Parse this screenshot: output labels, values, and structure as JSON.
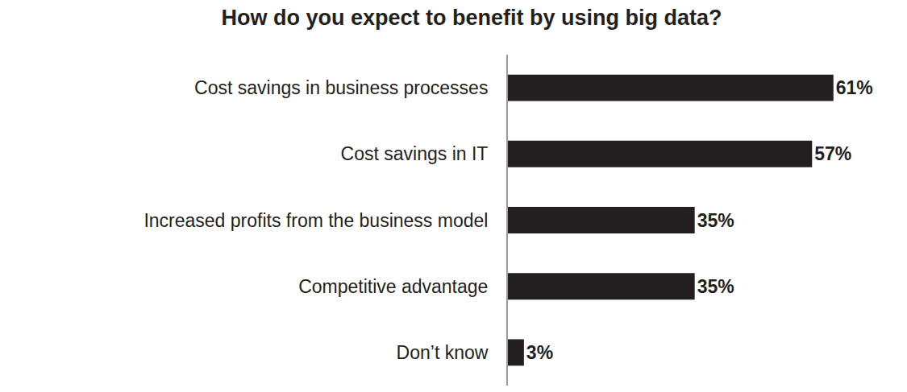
{
  "chart_data": {
    "type": "bar",
    "title": "How do you expect to benefit by using big data?",
    "categories": [
      "Cost savings in business processes",
      "Cost savings in IT",
      "Increased profits from the business model",
      "Competitive advantage",
      "Don’t know"
    ],
    "values": [
      61,
      57,
      35,
      35,
      3
    ],
    "value_labels": [
      "61%",
      "57%",
      "35%",
      "35%",
      "3%"
    ],
    "color": "#231f20",
    "orientation": "horizontal",
    "data_labels": true,
    "tick_labels": "y",
    "grid": false
  }
}
